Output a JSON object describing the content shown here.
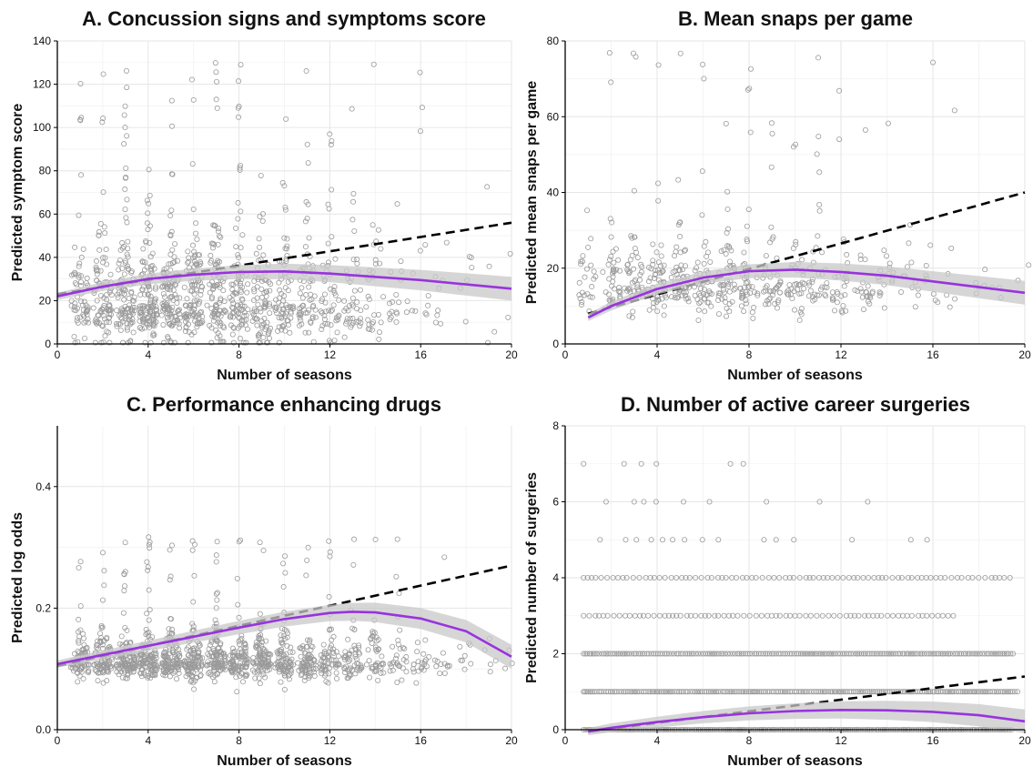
{
  "figure": {
    "colors": {
      "points": "#9a9a9a",
      "quadratic": "#9933dd",
      "band": "#c8c8c8",
      "linear": "#000000",
      "grid": "#e6e6e6"
    }
  },
  "chart_data": [
    {
      "type": "scatter",
      "title": "A. Concussion signs and symptoms score",
      "xlabel": "Number of seasons",
      "ylabel": "Predicted symptom score",
      "xlim": [
        0,
        20
      ],
      "ylim": [
        0,
        140
      ],
      "xticks": [
        "0",
        "4",
        "8",
        "12",
        "16",
        "20"
      ],
      "yticks": [
        "0",
        "20",
        "40",
        "60",
        "80",
        "100",
        "120",
        "140"
      ],
      "grid": true,
      "points": {
        "x_values": [
          1,
          2,
          3,
          4,
          5,
          6,
          7,
          8,
          9,
          10,
          11,
          12,
          13,
          14,
          15,
          16,
          17,
          18,
          19,
          20
        ],
        "density": [
          60,
          90,
          110,
          120,
          115,
          105,
          95,
          90,
          80,
          70,
          60,
          50,
          40,
          30,
          18,
          12,
          8,
          6,
          4,
          2
        ],
        "y_center": 18,
        "y_spread": 22,
        "y_max": 130
      },
      "series": [
        {
          "style": "dashed-black",
          "x": [
            0,
            20
          ],
          "y": [
            23,
            56
          ]
        },
        {
          "style": "purple-curve",
          "x": [
            0,
            2,
            4,
            6,
            8,
            10,
            12,
            14,
            16,
            18,
            20
          ],
          "y": [
            22,
            26.5,
            30,
            32,
            33.2,
            33.5,
            32.5,
            31,
            29.5,
            27.5,
            25.5
          ]
        }
      ]
    },
    {
      "type": "scatter",
      "title": "B. Mean snaps per game",
      "xlabel": "Number of seasons",
      "ylabel": "Predicted mean snaps per game",
      "xlim": [
        0,
        20
      ],
      "ylim": [
        0,
        80
      ],
      "xticks": [
        "0",
        "4",
        "8",
        "12",
        "16",
        "20"
      ],
      "yticks": [
        "0",
        "20",
        "40",
        "60",
        "80"
      ],
      "grid": true,
      "points": {
        "x_values": [
          1,
          2,
          3,
          4,
          5,
          6,
          7,
          8,
          9,
          10,
          11,
          12,
          13,
          14,
          15,
          16,
          17,
          18,
          19,
          20
        ],
        "density": [
          25,
          40,
          50,
          55,
          55,
          50,
          48,
          45,
          42,
          38,
          34,
          28,
          22,
          18,
          12,
          9,
          6,
          5,
          3,
          2
        ],
        "y_center": 15,
        "y_spread": 8,
        "y_max": 79
      },
      "series": [
        {
          "style": "dashed-black",
          "x": [
            1,
            20
          ],
          "y": [
            8,
            40
          ]
        },
        {
          "style": "purple-curve",
          "x": [
            1,
            2,
            4,
            6,
            8,
            10,
            12,
            14,
            16,
            18,
            20
          ],
          "y": [
            7,
            10,
            14.5,
            17.5,
            19.2,
            19.6,
            19,
            18,
            16.5,
            15,
            13.5
          ]
        }
      ]
    },
    {
      "type": "scatter",
      "title": "C. Performance enhancing drugs",
      "xlabel": "Number of seasons",
      "ylabel": "Predicted log odds",
      "xlim": [
        0,
        20
      ],
      "ylim": [
        0.0,
        0.5
      ],
      "xticks": [
        "0",
        "4",
        "8",
        "12",
        "16",
        "20"
      ],
      "yticks": [
        "0.0",
        "0.2",
        "0.4"
      ],
      "grid": true,
      "points": {
        "x_values": [
          1,
          2,
          3,
          4,
          5,
          6,
          7,
          8,
          9,
          10,
          11,
          12,
          13,
          14,
          15,
          16,
          17,
          18,
          19,
          20
        ],
        "density": [
          70,
          90,
          105,
          115,
          115,
          110,
          105,
          100,
          95,
          85,
          75,
          65,
          55,
          42,
          30,
          20,
          12,
          8,
          5,
          3
        ],
        "y_center": 0.11,
        "y_spread": 0.03,
        "y_max": 0.32
      },
      "series": [
        {
          "style": "dashed-black",
          "x": [
            0,
            20
          ],
          "y": [
            0.105,
            0.27
          ]
        },
        {
          "style": "purple-curve",
          "x": [
            0,
            2,
            4,
            6,
            8,
            10,
            12,
            13,
            14,
            16,
            18,
            20
          ],
          "y": [
            0.108,
            0.123,
            0.138,
            0.153,
            0.168,
            0.182,
            0.192,
            0.194,
            0.193,
            0.183,
            0.162,
            0.12
          ]
        }
      ]
    },
    {
      "type": "scatter",
      "title": "D. Number of active career surgeries",
      "xlabel": "Number of seasons",
      "ylabel": "Predicted number of surgeries",
      "xlim": [
        0,
        20
      ],
      "ylim": [
        0,
        8
      ],
      "xticks": [
        "0",
        "4",
        "8",
        "12",
        "16",
        "20"
      ],
      "yticks": [
        "0",
        "2",
        "4",
        "6",
        "8"
      ],
      "grid": true,
      "points": {
        "levels": [
          0,
          1,
          2,
          3,
          4,
          5,
          6,
          7
        ],
        "level_x_max": [
          19.5,
          19.8,
          19.5,
          17,
          19.5,
          16,
          14.5,
          10
        ]
      },
      "series": [
        {
          "style": "dashed-black",
          "x": [
            1,
            20
          ],
          "y": [
            -0.05,
            1.4
          ]
        },
        {
          "style": "purple-curve",
          "x": [
            1,
            2,
            4,
            6,
            8,
            10,
            12,
            14,
            16,
            18,
            20
          ],
          "y": [
            -0.05,
            0.05,
            0.2,
            0.33,
            0.43,
            0.49,
            0.52,
            0.51,
            0.47,
            0.38,
            0.22
          ]
        }
      ]
    }
  ]
}
